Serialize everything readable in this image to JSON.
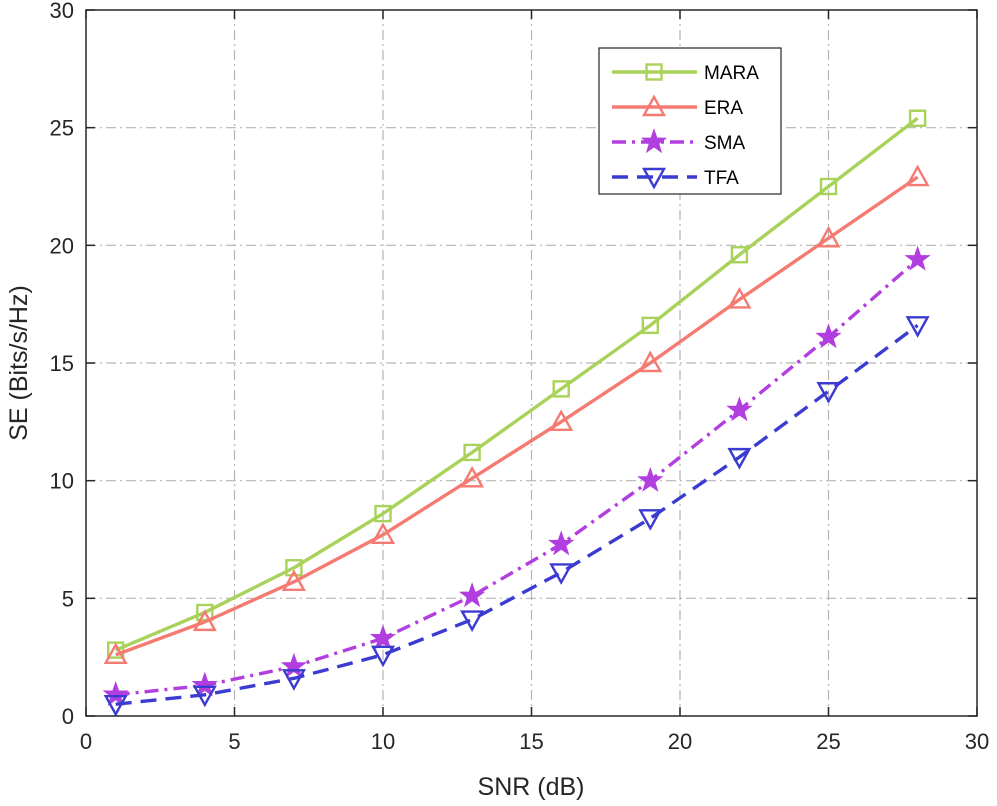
{
  "chart_data": {
    "type": "line",
    "title": "",
    "xlabel": "SNR (dB)",
    "ylabel": "SE (Bits/s/Hz)",
    "xlim": [
      0,
      30
    ],
    "ylim": [
      0,
      30
    ],
    "xticks": [
      0,
      5,
      10,
      15,
      20,
      25,
      30
    ],
    "yticks": [
      0,
      5,
      10,
      15,
      20,
      25,
      30
    ],
    "grid": true,
    "legend_position": "top-right",
    "x": [
      1,
      4,
      7,
      10,
      13,
      16,
      19,
      22,
      25,
      28
    ],
    "series": [
      {
        "name": "MARA",
        "color": "#a9d25a",
        "marker": "square",
        "line_style": "solid",
        "values": [
          2.8,
          4.4,
          6.3,
          8.6,
          11.2,
          13.9,
          16.6,
          19.6,
          22.5,
          25.4
        ]
      },
      {
        "name": "ERA",
        "color": "#f47a72",
        "marker": "triangle-up",
        "line_style": "solid",
        "values": [
          2.6,
          4.0,
          5.7,
          7.7,
          10.1,
          12.5,
          15.0,
          17.7,
          20.3,
          22.9
        ]
      },
      {
        "name": "SMA",
        "color": "#b23ee0",
        "marker": "star",
        "line_style": "dash-dot",
        "values": [
          0.9,
          1.3,
          2.1,
          3.3,
          5.1,
          7.3,
          10.0,
          13.0,
          16.1,
          19.4
        ]
      },
      {
        "name": "TFA",
        "color": "#3b3bd1",
        "marker": "triangle-down",
        "line_style": "dashed",
        "values": [
          0.5,
          0.9,
          1.6,
          2.6,
          4.1,
          6.1,
          8.4,
          11.0,
          13.8,
          16.6
        ]
      }
    ]
  }
}
